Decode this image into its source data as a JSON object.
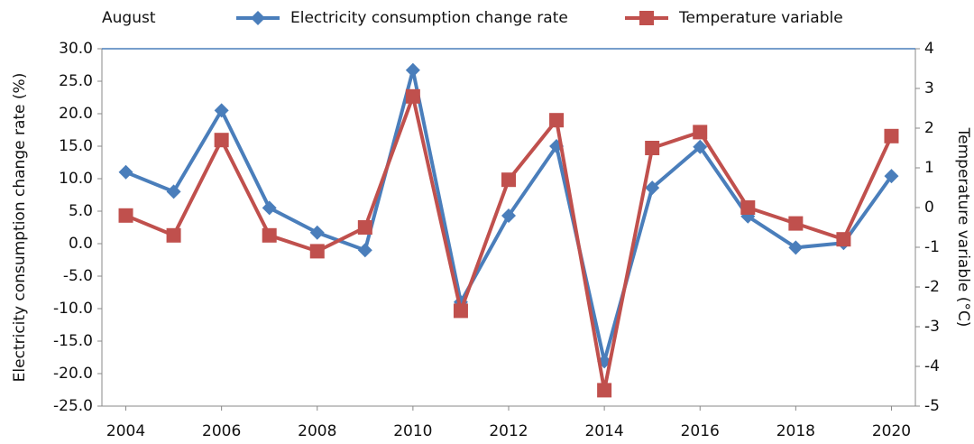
{
  "chart_data": {
    "type": "line",
    "legend_title": "August",
    "y_label": "Electricity consumption change rate (%)",
    "y2_label": "Temperature variable (°C)",
    "x": [
      2004,
      2005,
      2006,
      2007,
      2008,
      2009,
      2010,
      2011,
      2012,
      2013,
      2014,
      2015,
      2016,
      2017,
      2018,
      2019,
      2020
    ],
    "xlim": [
      2003.5,
      2020.5
    ],
    "xticks": [
      2004,
      2006,
      2008,
      2010,
      2012,
      2014,
      2016,
      2018,
      2020
    ],
    "ylim": [
      -25,
      30
    ],
    "yticks": [
      {
        "value": 30,
        "label": "30.0"
      },
      {
        "value": 25,
        "label": "25.0"
      },
      {
        "value": 20,
        "label": "20.0"
      },
      {
        "value": 15,
        "label": "15.0"
      },
      {
        "value": 10,
        "label": "10.0"
      },
      {
        "value": 5,
        "label": "5.0"
      },
      {
        "value": 0,
        "label": "0.0"
      },
      {
        "value": -5,
        "label": "-5.0"
      },
      {
        "value": -10,
        "label": "-10.0"
      },
      {
        "value": -15,
        "label": "-15.0"
      },
      {
        "value": -20,
        "label": "-20.0"
      },
      {
        "value": -25,
        "label": "-25.0"
      }
    ],
    "y2lim": [
      -5,
      4
    ],
    "y2ticks": [
      4,
      3,
      2,
      1,
      0,
      -1,
      -2,
      -3,
      -4,
      -5
    ],
    "legend": "top",
    "series": [
      {
        "name": "Electricity consumption change rate",
        "color": "#4a7ebb",
        "marker": "diamond",
        "values": [
          11.0,
          8.0,
          20.5,
          5.5,
          1.7,
          -1.0,
          26.7,
          -9.0,
          4.3,
          15.0,
          -18.1,
          8.6,
          14.9,
          4.2,
          -0.6,
          0.1,
          10.4
        ]
      },
      {
        "name": "Temperature variable",
        "color": "#c0504d",
        "marker": "square",
        "axis": "y2",
        "values": [
          -0.2,
          -0.7,
          1.7,
          -0.7,
          -1.1,
          -0.5,
          2.8,
          -2.6,
          0.7,
          2.2,
          -4.6,
          1.5,
          1.9,
          0,
          -0.4,
          -0.8,
          1.8
        ]
      }
    ]
  }
}
